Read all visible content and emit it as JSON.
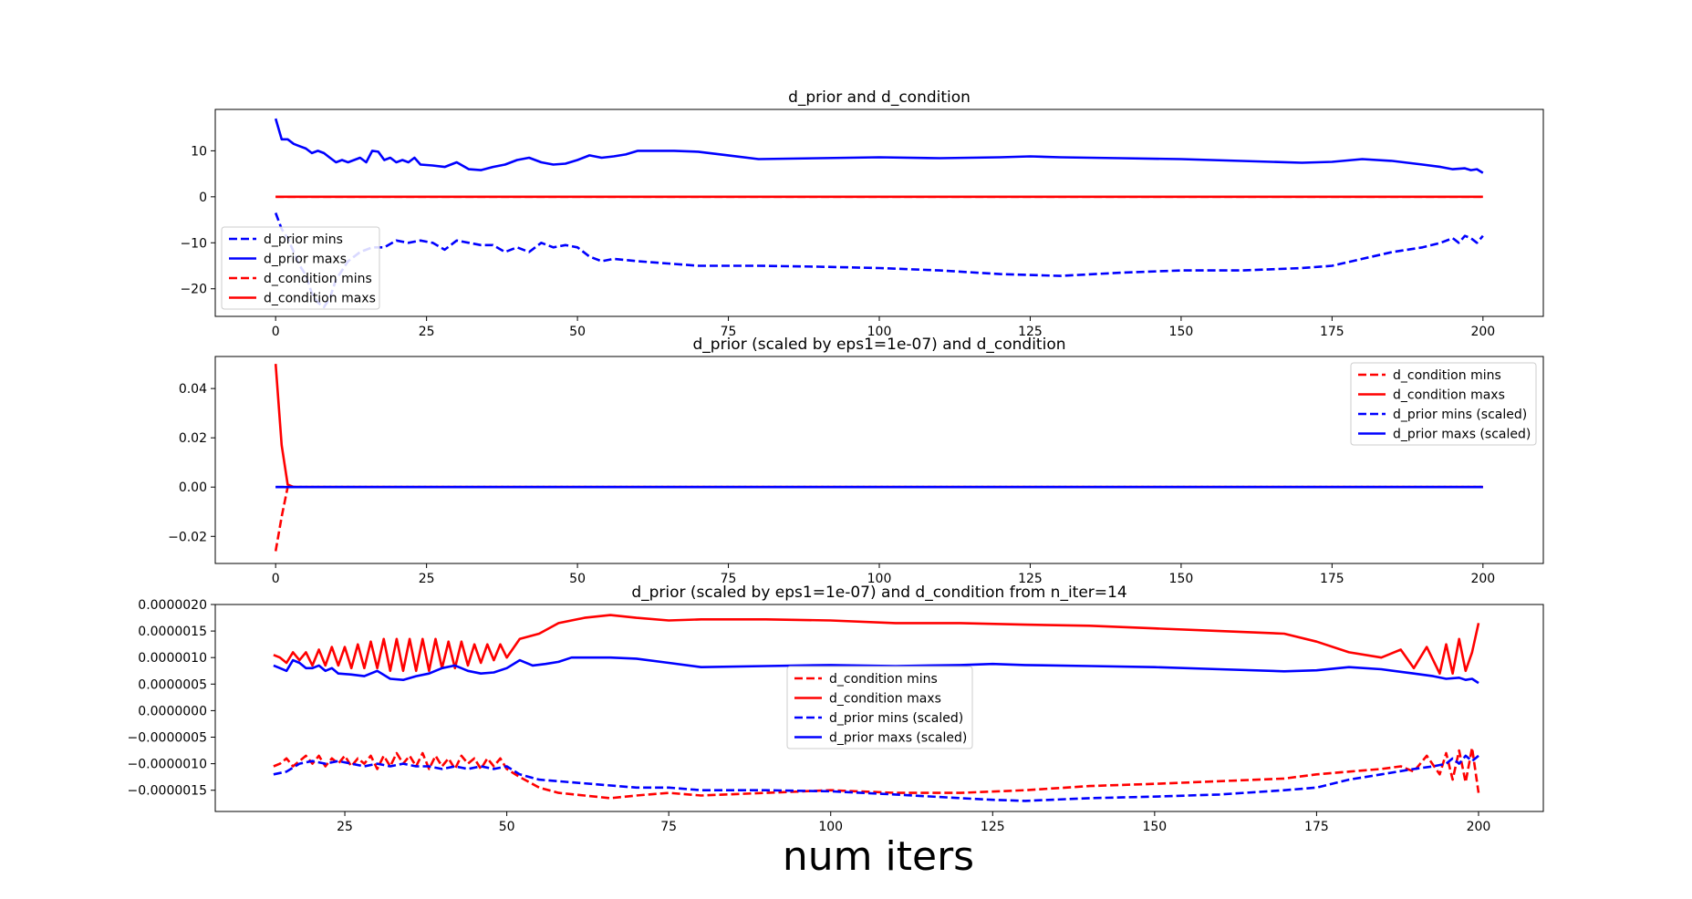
{
  "xlabel": "num iters",
  "colors": {
    "blue": "#0000ff",
    "red": "#ff0000"
  },
  "chart_data": [
    {
      "type": "line",
      "title": "d_prior and d_condition",
      "xlim": [
        -10,
        210
      ],
      "ylim": [
        -26,
        19
      ],
      "xticks": [
        "0",
        "25",
        "50",
        "75",
        "100",
        "125",
        "150",
        "175",
        "200"
      ],
      "xtick_values": [
        0,
        25,
        50,
        75,
        100,
        125,
        150,
        175,
        200
      ],
      "yticks": [
        "−20",
        "−10",
        "0",
        "10"
      ],
      "ytick_values": [
        -20,
        -10,
        0,
        10
      ],
      "legend_position": "lower-left",
      "series": [
        {
          "name": "d_prior mins",
          "color": "#0000ff",
          "dash": true,
          "x": [
            0,
            1,
            2,
            3,
            4,
            5,
            6,
            7,
            8,
            9,
            10,
            12,
            14,
            16,
            18,
            20,
            22,
            24,
            26,
            28,
            30,
            32,
            34,
            36,
            38,
            40,
            42,
            44,
            46,
            48,
            50,
            52,
            54,
            56,
            60,
            65,
            70,
            75,
            80,
            90,
            100,
            110,
            120,
            130,
            140,
            150,
            160,
            170,
            175,
            180,
            185,
            190,
            193,
            195,
            196,
            197,
            198,
            199,
            200
          ],
          "y": [
            -3.5,
            -7,
            -9,
            -12,
            -15,
            -17,
            -21,
            -23,
            -24,
            -22,
            -18,
            -14,
            -12,
            -11,
            -11,
            -9.5,
            -10,
            -9.5,
            -10,
            -11.5,
            -9.5,
            -10,
            -10.5,
            -10.5,
            -12,
            -11,
            -12,
            -10,
            -11,
            -10.5,
            -11,
            -13,
            -14,
            -13.5,
            -14,
            -14.5,
            -15,
            -15,
            -15,
            -15.2,
            -15.5,
            -16,
            -16.8,
            -17.2,
            -16.5,
            -16,
            -16,
            -15.5,
            -15,
            -13.5,
            -12,
            -11,
            -10,
            -9,
            -10,
            -8.5,
            -9,
            -10,
            -8.5
          ]
        },
        {
          "name": "d_prior maxs",
          "color": "#0000ff",
          "dash": false,
          "x": [
            0,
            1,
            2,
            3,
            4,
            5,
            6,
            7,
            8,
            9,
            10,
            11,
            12,
            13,
            14,
            15,
            16,
            17,
            18,
            19,
            20,
            21,
            22,
            23,
            24,
            26,
            28,
            30,
            32,
            34,
            36,
            38,
            40,
            42,
            44,
            46,
            48,
            50,
            52,
            54,
            56,
            58,
            60,
            63,
            66,
            70,
            75,
            80,
            90,
            100,
            110,
            120,
            125,
            130,
            140,
            150,
            160,
            170,
            175,
            180,
            185,
            190,
            193,
            195,
            197,
            198,
            199,
            200
          ],
          "y": [
            17,
            12.5,
            12.5,
            11.5,
            11,
            10.5,
            9.5,
            10,
            9.5,
            8.5,
            7.5,
            8,
            7.5,
            8,
            8.5,
            7.5,
            10,
            9.8,
            8,
            8.5,
            7.5,
            8,
            7.5,
            8.5,
            7,
            6.8,
            6.5,
            7.5,
            6,
            5.8,
            6.5,
            7,
            8,
            8.5,
            7.5,
            7,
            7.2,
            8,
            9,
            8.5,
            8.8,
            9.2,
            10,
            10,
            10,
            9.8,
            9,
            8.2,
            8.4,
            8.6,
            8.4,
            8.6,
            8.8,
            8.6,
            8.4,
            8.2,
            7.8,
            7.4,
            7.6,
            8.2,
            7.8,
            7,
            6.5,
            6,
            6.2,
            5.8,
            6,
            5.2
          ]
        },
        {
          "name": "d_condition mins",
          "color": "#ff0000",
          "dash": true,
          "x": [
            0,
            200
          ],
          "y": [
            0,
            0
          ]
        },
        {
          "name": "d_condition maxs",
          "color": "#ff0000",
          "dash": false,
          "x": [
            0,
            200
          ],
          "y": [
            0,
            0
          ]
        }
      ]
    },
    {
      "type": "line",
      "title": "d_prior (scaled by eps1=1e-07) and d_condition",
      "xlim": [
        -10,
        210
      ],
      "ylim": [
        -0.031,
        0.053
      ],
      "xticks": [
        "0",
        "25",
        "50",
        "75",
        "100",
        "125",
        "150",
        "175",
        "200"
      ],
      "xtick_values": [
        0,
        25,
        50,
        75,
        100,
        125,
        150,
        175,
        200
      ],
      "yticks": [
        "−0.02",
        "0.00",
        "0.02",
        "0.04"
      ],
      "ytick_values": [
        -0.02,
        0.0,
        0.02,
        0.04
      ],
      "legend_position": "upper-right",
      "series": [
        {
          "name": "d_condition mins",
          "color": "#ff0000",
          "dash": true,
          "x": [
            0,
            1,
            2,
            3,
            200
          ],
          "y": [
            -0.026,
            -0.012,
            0.0,
            0.0,
            0.0
          ]
        },
        {
          "name": "d_condition maxs",
          "color": "#ff0000",
          "dash": false,
          "x": [
            0,
            1,
            2,
            3,
            200
          ],
          "y": [
            0.05,
            0.017,
            0.001,
            0.0,
            0.0
          ]
        },
        {
          "name": "d_prior mins (scaled)",
          "color": "#0000ff",
          "dash": true,
          "x": [
            0,
            200
          ],
          "y": [
            0.0,
            0.0
          ]
        },
        {
          "name": "d_prior maxs (scaled)",
          "color": "#0000ff",
          "dash": false,
          "x": [
            0,
            200
          ],
          "y": [
            0.0,
            0.0
          ]
        }
      ]
    },
    {
      "type": "line",
      "title": "d_prior (scaled by eps1=1e-07) and d_condition from n_iter=14",
      "xlim": [
        5,
        210
      ],
      "ylim": [
        -1.9e-06,
        2e-06
      ],
      "xticks": [
        "25",
        "50",
        "75",
        "100",
        "125",
        "150",
        "175",
        "200"
      ],
      "xtick_values": [
        25,
        50,
        75,
        100,
        125,
        150,
        175,
        200
      ],
      "yticks": [
        "−0.0000015",
        "−0.0000010",
        "−0.0000005",
        "0.0000000",
        "0.0000005",
        "0.0000010",
        "0.0000015",
        "0.0000020"
      ],
      "ytick_values": [
        -1.5e-06,
        -1e-06,
        -5e-07,
        0.0,
        5e-07,
        1e-06,
        1.5e-06,
        2e-06
      ],
      "legend_position": "center",
      "series": [
        {
          "name": "d_condition mins",
          "color": "#ff0000",
          "dash": true,
          "x": [
            14,
            15,
            16,
            17,
            18,
            19,
            20,
            21,
            22,
            23,
            24,
            25,
            26,
            27,
            28,
            29,
            30,
            31,
            32,
            33,
            34,
            35,
            36,
            37,
            38,
            39,
            40,
            41,
            42,
            43,
            44,
            45,
            46,
            47,
            48,
            49,
            50,
            52,
            55,
            58,
            62,
            66,
            70,
            75,
            80,
            90,
            100,
            110,
            120,
            130,
            140,
            150,
            160,
            170,
            175,
            180,
            185,
            188,
            190,
            192,
            194,
            195,
            196,
            197,
            198,
            199,
            200
          ],
          "y": [
            -1.05e-06,
            -1e-06,
            -9e-07,
            -1.05e-06,
            -9.5e-07,
            -8.5e-07,
            -1e-06,
            -8.5e-07,
            -1.05e-06,
            -9e-07,
            -1e-06,
            -8.5e-07,
            -1.05e-06,
            -9e-07,
            -1e-06,
            -8.5e-07,
            -1.1e-06,
            -8.5e-07,
            -1.05e-06,
            -8e-07,
            -1e-06,
            -8.5e-07,
            -1.05e-06,
            -8e-07,
            -1.1e-06,
            -8.5e-07,
            -1.05e-06,
            -9e-07,
            -1.1e-06,
            -8.5e-07,
            -1e-06,
            -9e-07,
            -1.1e-06,
            -9e-07,
            -1.05e-06,
            -9e-07,
            -1.1e-06,
            -1.25e-06,
            -1.45e-06,
            -1.55e-06,
            -1.6e-06,
            -1.65e-06,
            -1.6e-06,
            -1.55e-06,
            -1.6e-06,
            -1.55e-06,
            -1.5e-06,
            -1.55e-06,
            -1.55e-06,
            -1.5e-06,
            -1.42e-06,
            -1.38e-06,
            -1.33e-06,
            -1.28e-06,
            -1.2e-06,
            -1.15e-06,
            -1.1e-06,
            -1.05e-06,
            -1.15e-06,
            -8.5e-07,
            -1.2e-06,
            -8e-07,
            -1.3e-06,
            -7.5e-07,
            -1.35e-06,
            -7e-07,
            -1.55e-06
          ]
        },
        {
          "name": "d_condition maxs",
          "color": "#ff0000",
          "dash": false,
          "x": [
            14,
            15,
            16,
            17,
            18,
            19,
            20,
            21,
            22,
            23,
            24,
            25,
            26,
            27,
            28,
            29,
            30,
            31,
            32,
            33,
            34,
            35,
            36,
            37,
            38,
            39,
            40,
            41,
            42,
            43,
            44,
            45,
            46,
            47,
            48,
            49,
            50,
            52,
            55,
            58,
            62,
            66,
            70,
            75,
            80,
            90,
            100,
            110,
            120,
            130,
            140,
            150,
            160,
            170,
            175,
            180,
            185,
            188,
            190,
            192,
            194,
            195,
            196,
            197,
            198,
            199,
            200
          ],
          "y": [
            1.05e-06,
            1e-06,
            9e-07,
            1.1e-06,
            9.5e-07,
            1.1e-06,
            8.5e-07,
            1.15e-06,
            8.5e-07,
            1.2e-06,
            8.5e-07,
            1.2e-06,
            8e-07,
            1.25e-06,
            8e-07,
            1.3e-06,
            8e-07,
            1.35e-06,
            7.5e-07,
            1.35e-06,
            7.5e-07,
            1.35e-06,
            7.5e-07,
            1.35e-06,
            7.5e-07,
            1.35e-06,
            8e-07,
            1.3e-06,
            8e-07,
            1.3e-06,
            8.5e-07,
            1.25e-06,
            9e-07,
            1.25e-06,
            9.5e-07,
            1.25e-06,
            1e-06,
            1.35e-06,
            1.45e-06,
            1.65e-06,
            1.75e-06,
            1.8e-06,
            1.75e-06,
            1.7e-06,
            1.72e-06,
            1.72e-06,
            1.7e-06,
            1.65e-06,
            1.65e-06,
            1.62e-06,
            1.6e-06,
            1.55e-06,
            1.5e-06,
            1.45e-06,
            1.3e-06,
            1.1e-06,
            1e-06,
            1.15e-06,
            8e-07,
            1.2e-06,
            7e-07,
            1.25e-06,
            7e-07,
            1.35e-06,
            7.5e-07,
            1.1e-06,
            1.65e-06
          ]
        },
        {
          "name": "d_prior mins (scaled)",
          "color": "#0000ff",
          "dash": true,
          "x": [
            14,
            16,
            18,
            20,
            22,
            24,
            26,
            28,
            30,
            32,
            34,
            36,
            38,
            40,
            42,
            44,
            46,
            48,
            50,
            52,
            55,
            60,
            65,
            70,
            75,
            80,
            90,
            100,
            110,
            120,
            125,
            130,
            140,
            150,
            160,
            170,
            175,
            180,
            185,
            190,
            193,
            195,
            196,
            197,
            198,
            199,
            200
          ],
          "y": [
            -1.2e-06,
            -1.15e-06,
            -1e-06,
            -9.5e-07,
            -1e-06,
            -9.5e-07,
            -1e-06,
            -1.05e-06,
            -1e-06,
            -1.05e-06,
            -1e-06,
            -1.05e-06,
            -1.05e-06,
            -1.1e-06,
            -1.05e-06,
            -1.1e-06,
            -1.05e-06,
            -1.1e-06,
            -1.05e-06,
            -1.2e-06,
            -1.3e-06,
            -1.35e-06,
            -1.4e-06,
            -1.45e-06,
            -1.45e-06,
            -1.5e-06,
            -1.5e-06,
            -1.52e-06,
            -1.58e-06,
            -1.65e-06,
            -1.68e-06,
            -1.7e-06,
            -1.65e-06,
            -1.62e-06,
            -1.58e-06,
            -1.5e-06,
            -1.45e-06,
            -1.3e-06,
            -1.2e-06,
            -1.1e-06,
            -1.05e-06,
            -1e-06,
            -9e-07,
            -1e-06,
            -8.5e-07,
            -9.5e-07,
            -8.5e-07
          ]
        },
        {
          "name": "d_prior maxs (scaled)",
          "color": "#0000ff",
          "dash": false,
          "x": [
            14,
            15,
            16,
            17,
            18,
            19,
            20,
            21,
            22,
            23,
            24,
            26,
            28,
            30,
            32,
            34,
            36,
            38,
            40,
            42,
            44,
            46,
            48,
            50,
            52,
            54,
            56,
            58,
            60,
            63,
            66,
            70,
            75,
            80,
            90,
            100,
            110,
            120,
            125,
            130,
            140,
            150,
            160,
            170,
            175,
            180,
            185,
            190,
            193,
            195,
            197,
            198,
            199,
            200
          ],
          "y": [
            8.5e-07,
            8e-07,
            7.5e-07,
            9.5e-07,
            9e-07,
            8e-07,
            8e-07,
            8.5e-07,
            7.5e-07,
            8e-07,
            7e-07,
            6.8e-07,
            6.5e-07,
            7.5e-07,
            6e-07,
            5.8e-07,
            6.5e-07,
            7e-07,
            8e-07,
            8.5e-07,
            7.5e-07,
            7e-07,
            7.2e-07,
            8e-07,
            9.5e-07,
            8.5e-07,
            8.8e-07,
            9.2e-07,
            1e-06,
            1e-06,
            1e-06,
            9.8e-07,
            9e-07,
            8.2e-07,
            8.4e-07,
            8.6e-07,
            8.4e-07,
            8.6e-07,
            8.8e-07,
            8.6e-07,
            8.4e-07,
            8.2e-07,
            7.8e-07,
            7.4e-07,
            7.6e-07,
            8.2e-07,
            7.8e-07,
            7e-07,
            6.5e-07,
            6e-07,
            6.2e-07,
            5.8e-07,
            6e-07,
            5.2e-07
          ]
        }
      ]
    }
  ]
}
